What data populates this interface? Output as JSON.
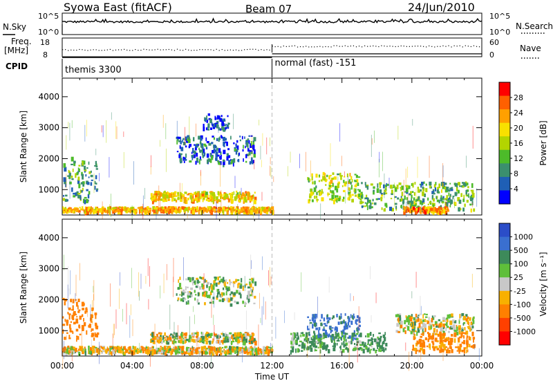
{
  "header": {
    "title": "Syowa East (fitACF)",
    "beam": "Beam 07",
    "date": "24/Jun/2010"
  },
  "params": {
    "nsky_label": "N.Sky",
    "nsearch_label": "N.Search",
    "noise_ticks_left": [
      "10^5",
      "10^0"
    ],
    "noise_ticks_right": [
      "10^5",
      "10^0"
    ],
    "freq_label": "Freq.",
    "freq_unit": "[MHz]",
    "freq_ticks": [
      "18",
      "8"
    ],
    "nave_label": "Nave",
    "nave_ticks": [
      "60",
      "0"
    ],
    "cpid_label": "CPID",
    "cpid_segments": [
      {
        "label": "themis 3300",
        "start_hour": 0,
        "end_hour": 12
      },
      {
        "label": "normal (fast) -151",
        "start_hour": 12,
        "end_hour": 24
      }
    ],
    "freq_mhz": [
      {
        "start_hour": 0,
        "end_hour": 12,
        "value": 10.5
      },
      {
        "start_hour": 12,
        "end_hour": 24,
        "value": 12.5
      }
    ]
  },
  "chart_data": [
    {
      "type": "heatmap",
      "panel": "power",
      "ylabel": "Slant Range [km]",
      "yticks": [
        "4000",
        "3000",
        "2000",
        "1000"
      ],
      "ylim": [
        180,
        4600
      ],
      "xlim": [
        0,
        24
      ],
      "colorbar_label": "Power [dB]",
      "colorbar_ticks": [
        "28",
        "24",
        "20",
        "16",
        "12",
        "8",
        "4"
      ],
      "colorbar_range": [
        0,
        32
      ],
      "colors": [
        "#0000ff",
        "#1f5fb5",
        "#3b8f6e",
        "#4dbb2a",
        "#b3d400",
        "#f8e000",
        "#ffa000",
        "#ff6000",
        "#ff0000"
      ],
      "echo_regions": [
        {
          "x0": 0.0,
          "x1": 2.0,
          "y0": 600,
          "y1": 2000,
          "level": 10
        },
        {
          "x0": 0.0,
          "x1": 12.0,
          "y0": 250,
          "y1": 400,
          "level": 22
        },
        {
          "x0": 5.0,
          "x1": 11.0,
          "y0": 600,
          "y1": 900,
          "level": 20
        },
        {
          "x0": 6.5,
          "x1": 11.0,
          "y0": 1800,
          "y1": 2700,
          "level": 6
        },
        {
          "x0": 8.0,
          "x1": 9.5,
          "y0": 2900,
          "y1": 3400,
          "level": 5
        },
        {
          "x0": 14.0,
          "x1": 17.0,
          "y0": 600,
          "y1": 1500,
          "level": 16
        },
        {
          "x0": 17.0,
          "x1": 23.5,
          "y0": 300,
          "y1": 1200,
          "level": 12
        },
        {
          "x0": 19.5,
          "x1": 22.0,
          "y0": 250,
          "y1": 400,
          "level": 24
        }
      ]
    },
    {
      "type": "heatmap",
      "panel": "velocity",
      "ylabel": "Slant Range [km]",
      "yticks": [
        "4000",
        "3000",
        "2000",
        "1000"
      ],
      "ylim": [
        180,
        4600
      ],
      "xlim": [
        0,
        24
      ],
      "xlabel": "Time UT",
      "xticks": [
        "00:00",
        "04:00",
        "08:00",
        "12:00",
        "16:00",
        "20:00",
        "00:00"
      ],
      "colorbar_label": "Velocity [m s⁻¹]",
      "colorbar_ticks": [
        "1000",
        "500",
        "100",
        "25",
        "-25",
        "-100",
        "-500",
        "-1000"
      ],
      "colors": [
        "#2b4dc8",
        "#3a6fd0",
        "#3d8a5a",
        "#5fbf3a",
        "#c8c8c8",
        "#f8b000",
        "#ff8000",
        "#ff4000",
        "#ff0000"
      ],
      "echo_regions": [
        {
          "x0": 0.0,
          "x1": 2.0,
          "y0": 700,
          "y1": 2000,
          "level": -300
        },
        {
          "x0": 0.0,
          "x1": 12.0,
          "y0": 250,
          "y1": 450,
          "level": -40
        },
        {
          "x0": 5.0,
          "x1": 11.0,
          "y0": 600,
          "y1": 900,
          "level": 10
        },
        {
          "x0": 6.5,
          "x1": 11.0,
          "y0": 1800,
          "y1": 2700,
          "level": 60
        },
        {
          "x0": 14.0,
          "x1": 17.0,
          "y0": 700,
          "y1": 1500,
          "level": 600
        },
        {
          "x0": 13.0,
          "x1": 18.5,
          "y0": 300,
          "y1": 900,
          "level": 150
        },
        {
          "x0": 19.0,
          "x1": 23.5,
          "y0": 900,
          "y1": 1500,
          "level": 0
        },
        {
          "x0": 20.0,
          "x1": 23.5,
          "y0": 300,
          "y1": 900,
          "level": -200
        }
      ]
    }
  ]
}
